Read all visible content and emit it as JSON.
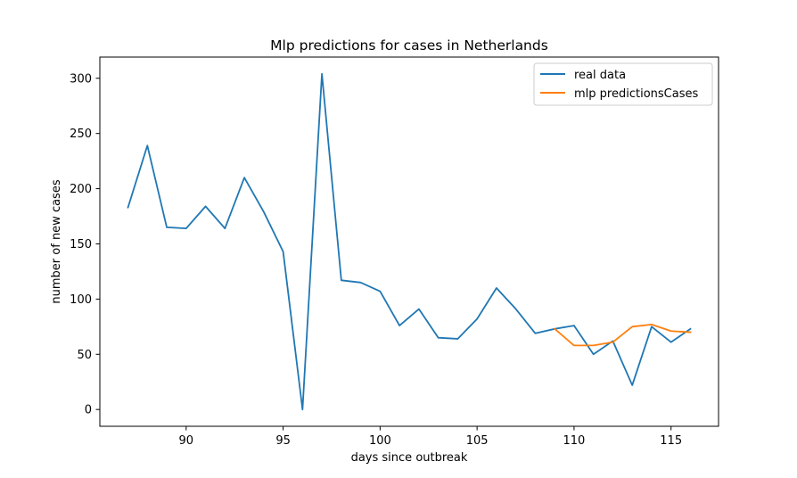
{
  "chart_data": {
    "type": "line",
    "title": "Mlp predictions for cases in  Netherlands",
    "xlabel": "days since outbreak",
    "ylabel": "number of new cases",
    "xlim": [
      85.55,
      117.45
    ],
    "ylim": [
      -15.2,
      319.2
    ],
    "xticks": [
      90,
      95,
      100,
      105,
      110,
      115
    ],
    "yticks": [
      0,
      50,
      100,
      150,
      200,
      250,
      300
    ],
    "grid": false,
    "legend_position": "upper right",
    "series": [
      {
        "name": "real data",
        "color": "#1f77b4",
        "x": [
          87,
          88,
          89,
          90,
          91,
          92,
          93,
          94,
          95,
          96,
          97,
          98,
          99,
          100,
          101,
          102,
          103,
          104,
          105,
          106,
          107,
          108,
          109,
          110,
          111,
          112,
          113,
          114,
          115,
          116
        ],
        "y": [
          183,
          239,
          165,
          164,
          184,
          164,
          210,
          179,
          143,
          0,
          304,
          117,
          115,
          107,
          76,
          91,
          65,
          64,
          82,
          110,
          91,
          69,
          73,
          76,
          50,
          62,
          22,
          75,
          61,
          73
        ]
      },
      {
        "name": "mlp predictionsCases",
        "color": "#ff7f0e",
        "x": [
          109,
          110,
          111,
          112,
          113,
          114,
          115,
          116
        ],
        "y": [
          73,
          58,
          58,
          61,
          75,
          77,
          71,
          70
        ]
      }
    ]
  }
}
